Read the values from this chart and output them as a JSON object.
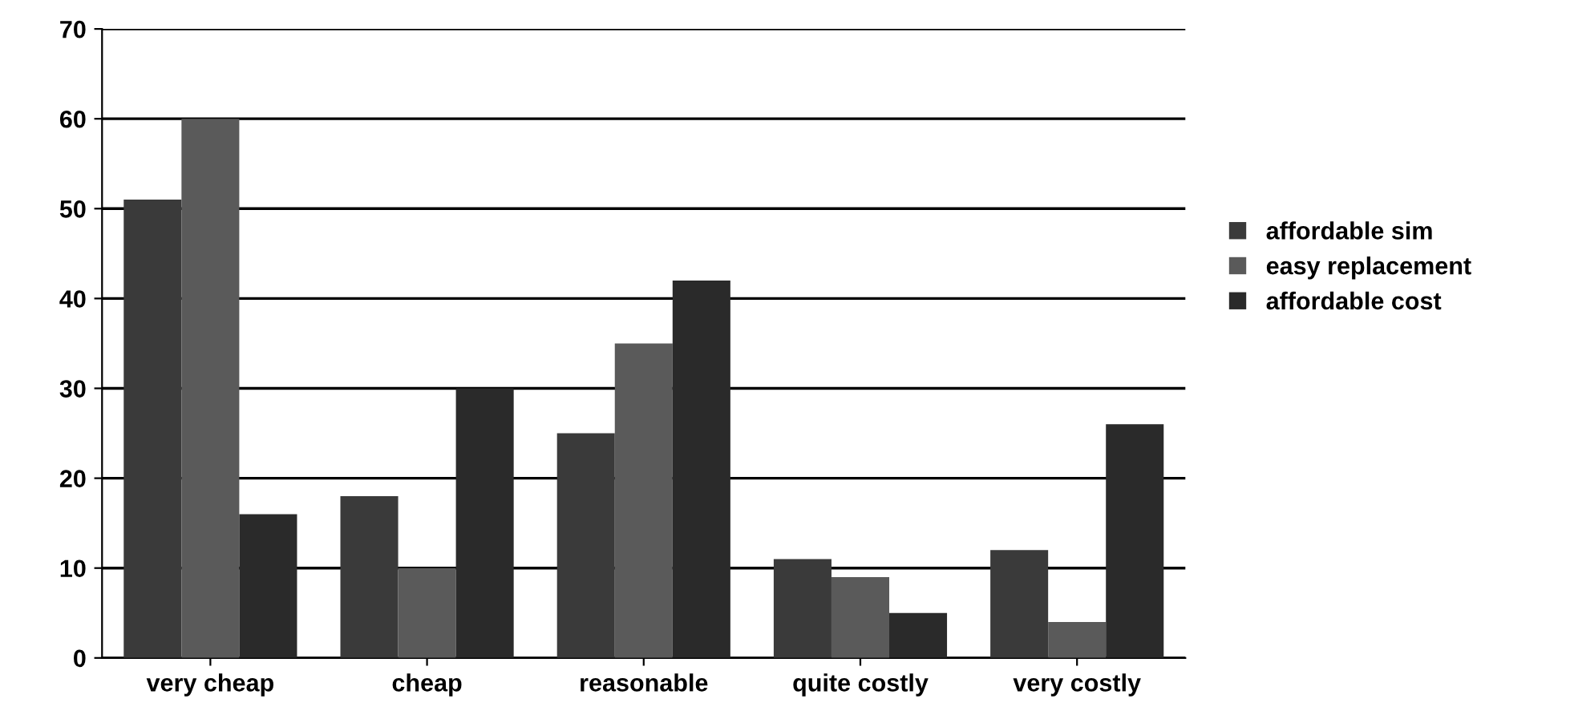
{
  "chart_data": {
    "type": "bar",
    "categories": [
      "very cheap",
      "cheap",
      "reasonable",
      "quite costly",
      "very costly"
    ],
    "series": [
      {
        "name": "affordable sim",
        "color": "#3a3a3a",
        "values": [
          51,
          18,
          25,
          11,
          12
        ]
      },
      {
        "name": "easy replacement",
        "color": "#5a5a5a",
        "values": [
          60,
          10,
          35,
          9,
          4
        ]
      },
      {
        "name": "affordable cost",
        "color": "#2a2a2a",
        "values": [
          16,
          30,
          42,
          5,
          26
        ]
      }
    ],
    "ylim": [
      0,
      70
    ],
    "yticks": [
      0,
      10,
      20,
      30,
      40,
      50,
      60,
      70
    ],
    "grid": "y",
    "legend": "right"
  }
}
